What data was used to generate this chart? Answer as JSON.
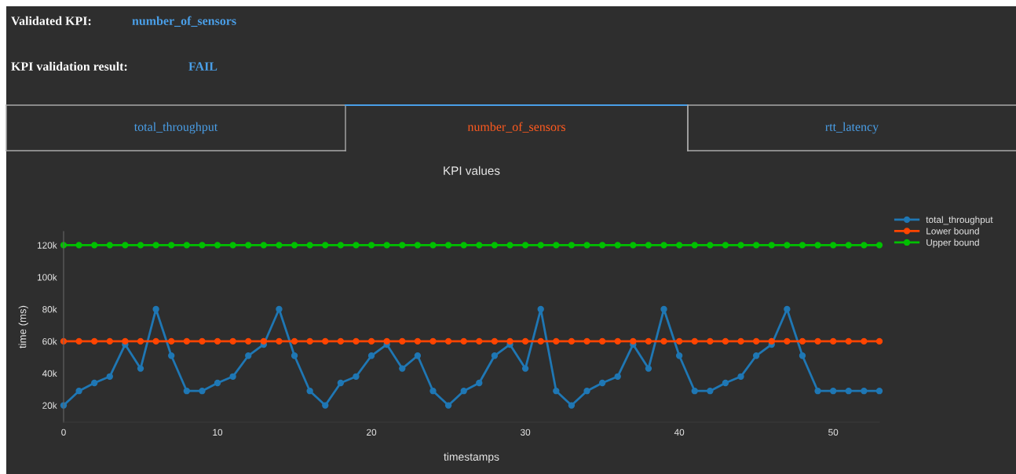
{
  "chart_data": {
    "type": "line",
    "title": "KPI values",
    "xlabel": "timestamps",
    "ylabel": "time (ms)",
    "annotations": [
      "Validated KPI:",
      "number_of_sensors",
      "KPI validation result:",
      "FAIL",
      "total_throughput",
      "number_of_sensors",
      "rtt_latency"
    ],
    "x": [
      0,
      1,
      2,
      3,
      4,
      5,
      6,
      7,
      8,
      9,
      10,
      11,
      12,
      13,
      14,
      15,
      16,
      17,
      18,
      19,
      20,
      21,
      22,
      23,
      24,
      25,
      26,
      27,
      28,
      29,
      30,
      31,
      32,
      33,
      34,
      35,
      36,
      37,
      38,
      39,
      40,
      41,
      42,
      43,
      44,
      45,
      46,
      47,
      48,
      49,
      50,
      51,
      52,
      53
    ],
    "series": [
      {
        "name": "total_throughput",
        "color": "#1f77b4",
        "values": [
          20000,
          29000,
          34000,
          38000,
          58000,
          43000,
          80000,
          51000,
          29000,
          29000,
          34000,
          38000,
          51000,
          58000,
          80000,
          51000,
          29000,
          20000,
          34000,
          38000,
          51000,
          58000,
          43000,
          51000,
          29000,
          20000,
          29000,
          34000,
          51000,
          58000,
          43000,
          80000,
          29000,
          20000,
          29000,
          34000,
          38000,
          58000,
          43000,
          80000,
          51000,
          29000,
          29000,
          34000,
          38000,
          51000,
          58000,
          80000,
          51000,
          29000,
          29000,
          29000,
          29000,
          29000
        ]
      },
      {
        "name": "Lower bound",
        "color": "#ff4500",
        "values": [
          60000,
          60000,
          60000,
          60000,
          60000,
          60000,
          60000,
          60000,
          60000,
          60000,
          60000,
          60000,
          60000,
          60000,
          60000,
          60000,
          60000,
          60000,
          60000,
          60000,
          60000,
          60000,
          60000,
          60000,
          60000,
          60000,
          60000,
          60000,
          60000,
          60000,
          60000,
          60000,
          60000,
          60000,
          60000,
          60000,
          60000,
          60000,
          60000,
          60000,
          60000,
          60000,
          60000,
          60000,
          60000,
          60000,
          60000,
          60000,
          60000,
          60000,
          60000,
          60000,
          60000,
          60000
        ]
      },
      {
        "name": "Upper bound",
        "color": "#00c000",
        "values": [
          120000,
          120000,
          120000,
          120000,
          120000,
          120000,
          120000,
          120000,
          120000,
          120000,
          120000,
          120000,
          120000,
          120000,
          120000,
          120000,
          120000,
          120000,
          120000,
          120000,
          120000,
          120000,
          120000,
          120000,
          120000,
          120000,
          120000,
          120000,
          120000,
          120000,
          120000,
          120000,
          120000,
          120000,
          120000,
          120000,
          120000,
          120000,
          120000,
          120000,
          120000,
          120000,
          120000,
          120000,
          120000,
          120000,
          120000,
          120000,
          120000,
          120000,
          120000,
          120000,
          120000,
          120000
        ]
      }
    ],
    "xlim": [
      0,
      53
    ],
    "xticks": [
      0,
      10,
      20,
      30,
      40,
      50
    ],
    "ylim": [
      9500,
      128500
    ],
    "yticks": [
      {
        "value": 20000,
        "label": "20k"
      },
      {
        "value": 40000,
        "label": "40k"
      },
      {
        "value": 60000,
        "label": "60k"
      },
      {
        "value": 80000,
        "label": "80k"
      },
      {
        "value": 100000,
        "label": "100k"
      },
      {
        "value": 120000,
        "label": "120k"
      }
    ],
    "grid": false,
    "legend": "top right",
    "marker": "circle",
    "line_style": "solid"
  }
}
